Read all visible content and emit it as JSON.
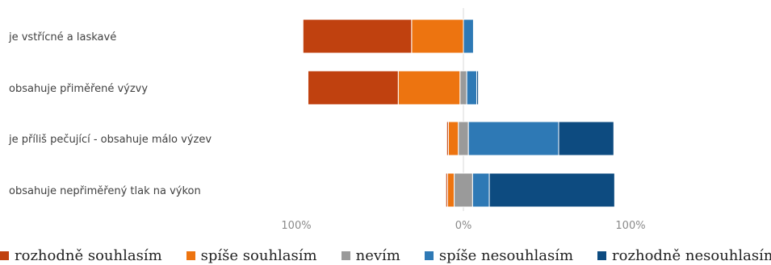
{
  "chart_data": {
    "type": "bar",
    "orientation": "horizontal",
    "stacked": "diverging",
    "categories": [
      "je vstřícné a laskavé",
      "obsahuje přiměřené výzvy",
      "je příliš pečující - obsahuje málo výzev",
      "obsahuje nepřiměřený tlak na výkon"
    ],
    "series": [
      {
        "name": "rozhodně souhlasím",
        "color": "#c0410f",
        "side": "left",
        "values": [
          65,
          54,
          1,
          1
        ]
      },
      {
        "name": "spíše souhlasím",
        "color": "#ed7410",
        "side": "left",
        "values": [
          31,
          37,
          6,
          4
        ]
      },
      {
        "name": "nevím",
        "color": "#9a9a9a",
        "side": "center",
        "values": [
          0,
          4,
          6,
          11
        ]
      },
      {
        "name": "spíše nesouhlasím",
        "color": "#2e79b5",
        "side": "right",
        "values": [
          6,
          6,
          54,
          10
        ]
      },
      {
        "name": "rozhodně nesouhlasím",
        "color": "#0d4b80",
        "side": "right",
        "values": [
          0,
          1,
          33,
          75
        ]
      }
    ],
    "xlim": [
      -100,
      100
    ],
    "ticks": [
      {
        "value": -100,
        "label": "100%"
      },
      {
        "value": 0,
        "label": "0%"
      },
      {
        "value": 100,
        "label": "100%"
      }
    ],
    "legend_position": "bottom",
    "grid": false
  }
}
